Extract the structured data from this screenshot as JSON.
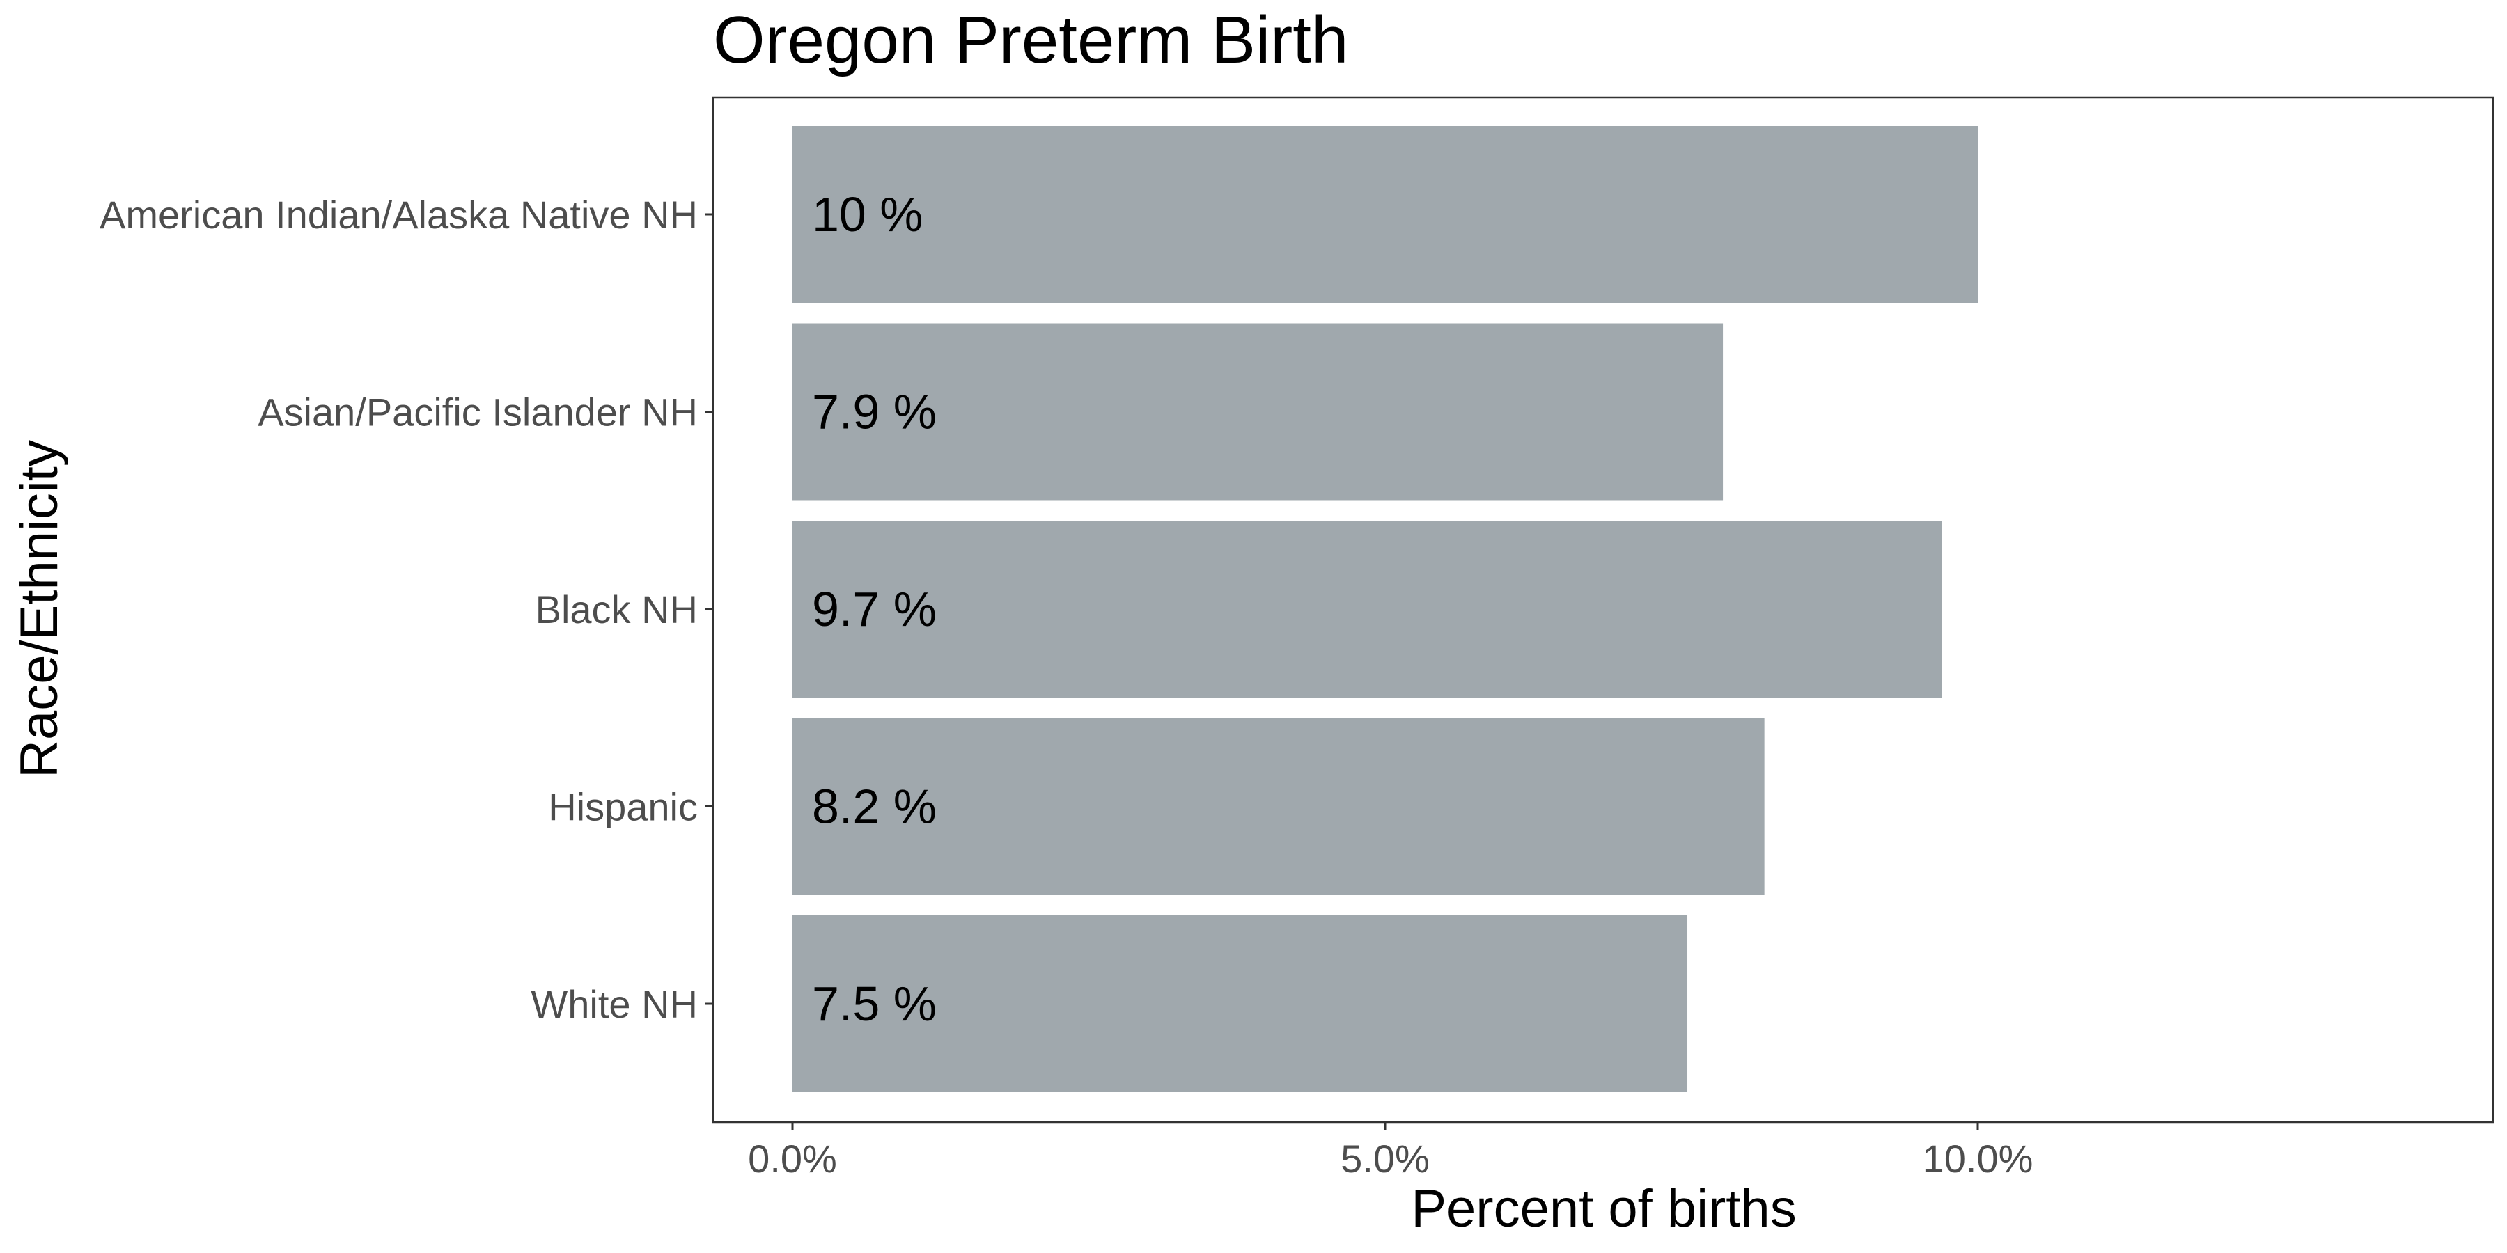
{
  "chart_data": {
    "type": "bar",
    "orientation": "horizontal",
    "title": "Oregon Preterm Birth",
    "xlabel": "Percent of births",
    "ylabel": "Race/Ethnicity",
    "categories": [
      "American Indian/Alaska Native NH",
      "Asian/Pacific Islander NH",
      "Black NH",
      "Hispanic",
      "White NH"
    ],
    "values": [
      10.0,
      7.85,
      9.7,
      8.2,
      7.55
    ],
    "data_labels": [
      "10 %",
      "7.9 %",
      "9.7 %",
      "8.2 %",
      "7.5 %"
    ],
    "xlim": [
      -0.67,
      14.35
    ],
    "xticks": [
      0,
      5,
      10
    ],
    "xtick_labels": [
      "0.0%",
      "5.0%",
      "10.0%"
    ],
    "bar_color": "#a0a8ad",
    "grid": false
  }
}
